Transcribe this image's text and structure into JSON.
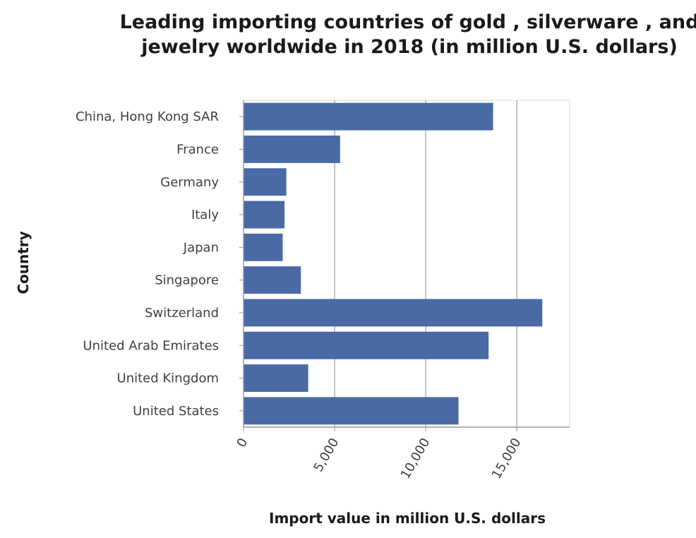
{
  "chart_data": {
    "type": "bar",
    "orientation": "horizontal",
    "title": "Leading importing countries of gold , silverware , and jewelry worldwide in 2018 (in million U.S. dollars)",
    "xlabel": "Import value in million U.S. dollars",
    "ylabel": "Country",
    "categories": [
      "China, Hong Kong SAR",
      "France",
      "Germany",
      "Italy",
      "Japan",
      "Singapore",
      "Switzerland",
      "United Arab Emirates",
      "United Kingdom",
      "United States"
    ],
    "values": [
      13700,
      5300,
      2350,
      2250,
      2150,
      3150,
      16400,
      13450,
      3550,
      11800
    ],
    "xlim": [
      0,
      17900
    ],
    "xticks": [
      0,
      5000,
      10000,
      15000
    ],
    "xtick_labels": [
      "0",
      "5,000",
      "10,000",
      "15,000"
    ],
    "grid": "vertical",
    "legend": "none",
    "colors": {
      "bar": "#4a6aa5",
      "grid": "#8a8a8a",
      "axis": "#999999",
      "text": "#404040",
      "title": "#1a1a1a"
    }
  }
}
